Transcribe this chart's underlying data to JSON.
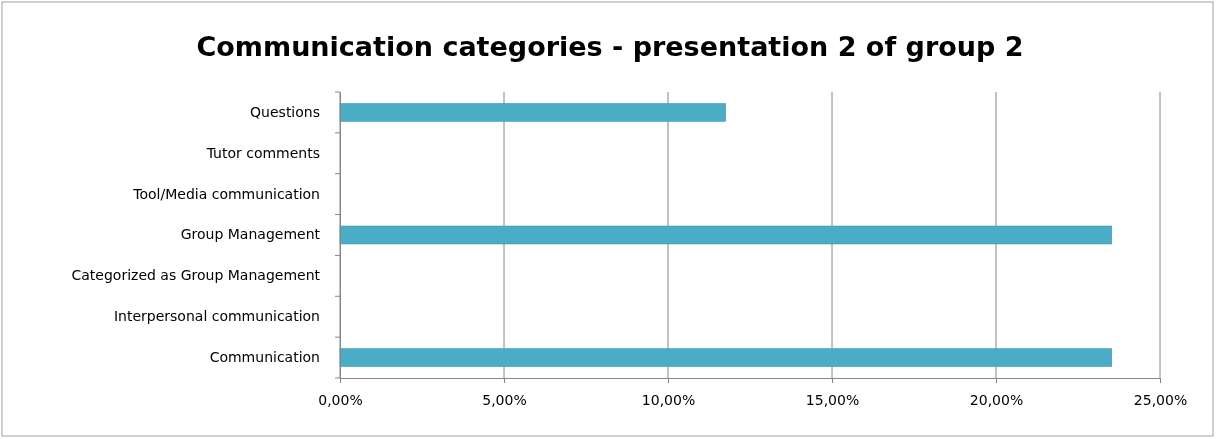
{
  "chart_data": {
    "type": "bar",
    "orientation": "horizontal",
    "title": "Communication categories - presentation 2 of group 2",
    "categories": [
      "Questions",
      "Tutor comments",
      "Tool/Media communication",
      "Group Management",
      "Categorized as Group Management",
      "Interpersonal communication",
      "Communication"
    ],
    "values": [
      11.76,
      0,
      0,
      23.53,
      0,
      0,
      23.53
    ],
    "color": "#4bacc6",
    "xlim": [
      0,
      25
    ],
    "xticks": [
      {
        "value": 0,
        "label": "0,00%"
      },
      {
        "value": 5,
        "label": "5,00%"
      },
      {
        "value": 10,
        "label": "10,00%"
      },
      {
        "value": 15,
        "label": "15,00%"
      },
      {
        "value": 20,
        "label": "20,00%"
      },
      {
        "value": 25,
        "label": "25,00%"
      }
    ],
    "grid": "x"
  }
}
